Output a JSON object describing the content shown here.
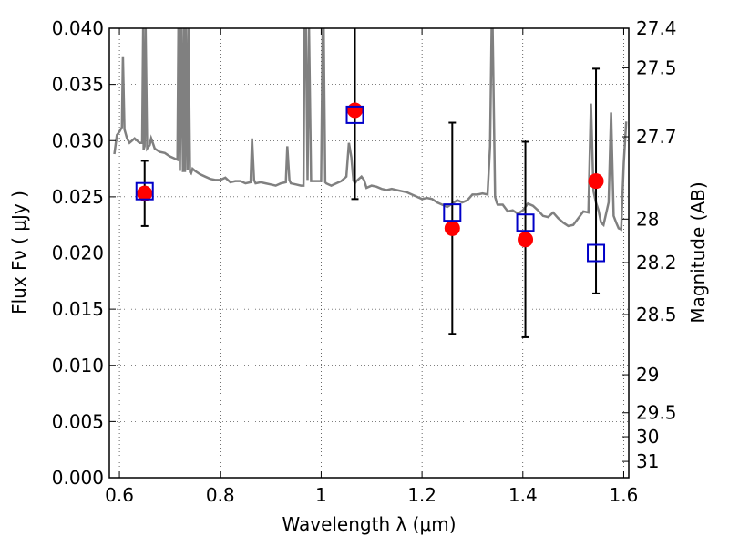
{
  "chart_data": {
    "type": "scatter",
    "xlabel": "Wavelength  λ (μm)",
    "ylabel": "Flux  Fν ( μJy )",
    "y2label": "Magnitude (AB)",
    "xlim": [
      0.58,
      1.61
    ],
    "ylim": [
      0.0,
      0.04
    ],
    "grid": true,
    "x_ticks": [
      0.6,
      0.8,
      1.0,
      1.2,
      1.4,
      1.6
    ],
    "x_tick_labels": [
      "0.6",
      "0.8",
      "1",
      "1.2",
      "1.4",
      "1.6"
    ],
    "y_ticks": [
      0.0,
      0.005,
      0.01,
      0.015,
      0.02,
      0.025,
      0.03,
      0.035,
      0.04
    ],
    "y_tick_labels": [
      "0.000",
      "0.005",
      "0.010",
      "0.015",
      "0.020",
      "0.025",
      "0.030",
      "0.035",
      "0.040"
    ],
    "mag_ticks": [
      27.4,
      27.5,
      27.7,
      28.0,
      28.2,
      28.5,
      29.0,
      29.5,
      30.0,
      31.0
    ],
    "mag_tick_labels": [
      "27.4",
      "27.5",
      "27.7",
      "28",
      "28.2",
      "28.5",
      "29",
      "29.5",
      "30",
      "31"
    ],
    "series": [
      {
        "kind": "spectrum-line",
        "color": "#808080",
        "x": [
          0.59,
          0.595,
          0.6,
          0.605,
          0.607,
          0.61,
          0.615,
          0.62,
          0.625,
          0.63,
          0.64,
          0.645,
          0.647,
          0.648,
          0.65,
          0.652,
          0.655,
          0.66,
          0.663,
          0.667,
          0.67,
          0.68,
          0.69,
          0.7,
          0.71,
          0.715,
          0.717,
          0.72,
          0.723,
          0.726,
          0.728,
          0.73,
          0.732,
          0.735,
          0.737,
          0.74,
          0.742,
          0.745,
          0.75,
          0.76,
          0.77,
          0.78,
          0.79,
          0.8,
          0.81,
          0.82,
          0.83,
          0.84,
          0.85,
          0.86,
          0.863,
          0.867,
          0.87,
          0.88,
          0.89,
          0.9,
          0.91,
          0.92,
          0.93,
          0.933,
          0.937,
          0.94,
          0.95,
          0.96,
          0.965,
          0.967,
          0.97,
          0.973,
          0.976,
          0.98,
          0.99,
          1.0,
          1.003,
          1.005,
          1.008,
          1.01,
          1.02,
          1.03,
          1.04,
          1.05,
          1.055,
          1.06,
          1.064,
          1.067,
          1.07,
          1.08,
          1.085,
          1.09,
          1.1,
          1.11,
          1.12,
          1.13,
          1.14,
          1.15,
          1.16,
          1.17,
          1.18,
          1.19,
          1.2,
          1.21,
          1.22,
          1.23,
          1.24,
          1.25,
          1.26,
          1.27,
          1.28,
          1.29,
          1.3,
          1.31,
          1.32,
          1.33,
          1.335,
          1.338,
          1.34,
          1.345,
          1.348,
          1.35,
          1.36,
          1.37,
          1.38,
          1.39,
          1.4,
          1.41,
          1.42,
          1.43,
          1.44,
          1.45,
          1.46,
          1.47,
          1.48,
          1.49,
          1.5,
          1.51,
          1.52,
          1.53,
          1.535,
          1.54,
          1.545,
          1.55,
          1.555,
          1.56,
          1.57,
          1.575,
          1.58,
          1.585,
          1.59,
          1.595,
          1.6,
          1.605
        ],
        "y": [
          0.0288,
          0.0305,
          0.0308,
          0.0312,
          0.0375,
          0.031,
          0.0302,
          0.0298,
          0.03,
          0.0302,
          0.0298,
          0.0298,
          0.05,
          0.0292,
          0.0295,
          0.05,
          0.0293,
          0.0296,
          0.0302,
          0.0297,
          0.0293,
          0.029,
          0.0289,
          0.0286,
          0.0284,
          0.0283,
          0.05,
          0.0273,
          0.05,
          0.0272,
          0.05,
          0.0272,
          0.05,
          0.0274,
          0.05,
          0.0272,
          0.0271,
          0.0275,
          0.0273,
          0.027,
          0.0268,
          0.0266,
          0.0265,
          0.0265,
          0.0267,
          0.0263,
          0.0264,
          0.0264,
          0.0262,
          0.0263,
          0.0302,
          0.0265,
          0.0262,
          0.0263,
          0.0262,
          0.0261,
          0.026,
          0.0262,
          0.0263,
          0.0295,
          0.0265,
          0.0262,
          0.0261,
          0.026,
          0.026,
          0.05,
          0.05,
          0.0265,
          0.05,
          0.0264,
          0.0264,
          0.0264,
          0.05,
          0.05,
          0.0263,
          0.0262,
          0.026,
          0.0262,
          0.0264,
          0.0268,
          0.0298,
          0.0285,
          0.0265,
          0.0262,
          0.0264,
          0.0268,
          0.0265,
          0.0258,
          0.026,
          0.0259,
          0.0257,
          0.0256,
          0.0257,
          0.0256,
          0.0255,
          0.0254,
          0.0252,
          0.025,
          0.0248,
          0.0249,
          0.0248,
          0.0245,
          0.0243,
          0.0241,
          0.0244,
          0.0247,
          0.0245,
          0.0247,
          0.0252,
          0.0252,
          0.0253,
          0.0252,
          0.0295,
          0.05,
          0.05,
          0.025,
          0.0245,
          0.0243,
          0.0243,
          0.0237,
          0.0238,
          0.0235,
          0.0238,
          0.0244,
          0.0242,
          0.0238,
          0.0233,
          0.0232,
          0.0236,
          0.0231,
          0.0227,
          0.0224,
          0.0225,
          0.0231,
          0.0237,
          0.0236,
          0.0333,
          0.0255,
          0.0245,
          0.0238,
          0.0227,
          0.0225,
          0.0245,
          0.0325,
          0.0233,
          0.0227,
          0.0222,
          0.0221,
          0.028,
          0.0317
        ]
      },
      {
        "kind": "observed-points",
        "marker": "filled-circle",
        "color": "#ff0000",
        "x": [
          0.65,
          1.067,
          1.26,
          1.405,
          1.545
        ],
        "y": [
          0.0253,
          0.0327,
          0.0222,
          0.0212,
          0.0264
        ],
        "yerr": [
          0.0029,
          0.0079,
          0.0094,
          0.0087,
          0.01
        ]
      },
      {
        "kind": "model-points",
        "marker": "open-square",
        "color": "#0000c8",
        "x": [
          0.65,
          1.067,
          1.26,
          1.405,
          1.545
        ],
        "y": [
          0.0255,
          0.0323,
          0.0236,
          0.0227,
          0.02
        ]
      }
    ]
  }
}
